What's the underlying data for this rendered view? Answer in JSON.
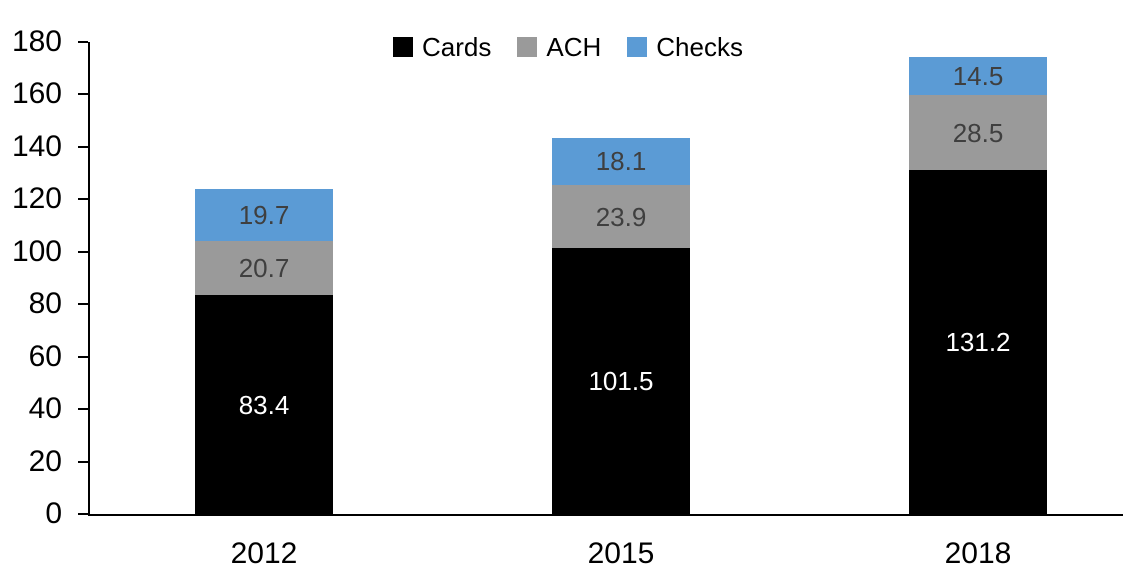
{
  "chart_data": {
    "type": "bar",
    "stacked": true,
    "title": "",
    "xlabel": "",
    "ylabel": "",
    "categories": [
      "2012",
      "2015",
      "2018"
    ],
    "series": [
      {
        "name": "Cards",
        "color": "#000000",
        "label_color": "#ffffff",
        "values": [
          83.4,
          101.5,
          131.2
        ]
      },
      {
        "name": "ACH",
        "color": "#9a9a9a",
        "label_color": "#3f3f3f",
        "values": [
          20.7,
          23.9,
          28.5
        ]
      },
      {
        "name": "Checks",
        "color": "#5b9bd5",
        "label_color": "#3f3f3f",
        "values": [
          19.7,
          18.1,
          14.5
        ]
      }
    ],
    "ylim": [
      0,
      180
    ],
    "yticks": [
      0,
      20,
      40,
      60,
      80,
      100,
      120,
      140,
      160,
      180
    ],
    "grid": false,
    "data_labels": true,
    "legend_position": "top"
  }
}
